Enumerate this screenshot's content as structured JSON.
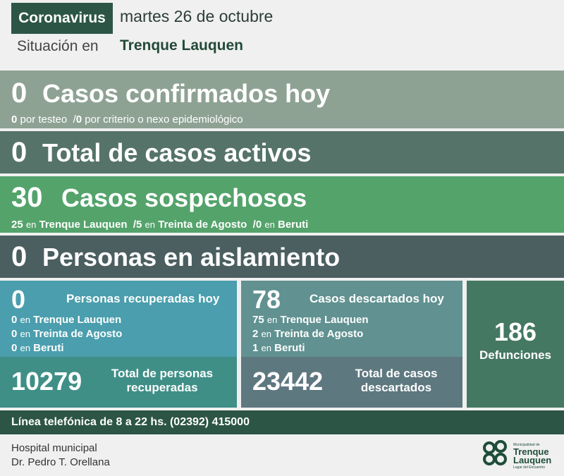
{
  "header": {
    "tag": "Coronavirus",
    "date": "martes 26 de octubre",
    "situacion": "Situación en",
    "place": "Trenque Lauquen"
  },
  "confirmados": {
    "value": "0",
    "label": "Casos confirmados hoy",
    "testeo_value": "0",
    "testeo_text": "por testeo",
    "criterio_value": "0",
    "criterio_text": "por criterio o nexo epidemiológico"
  },
  "activos": {
    "value": "0",
    "label": "Total de casos activos"
  },
  "sospechosos": {
    "value": "30",
    "label": "Casos sospechosos",
    "items": [
      {
        "value": "25",
        "en": "en",
        "place": "Trenque Lauquen"
      },
      {
        "value": "5",
        "en": "en",
        "place": "Treinta de Agosto"
      },
      {
        "value": "0",
        "en": "en",
        "place": "Beruti"
      }
    ]
  },
  "aislamiento": {
    "value": "0",
    "label": "Personas en aislamiento"
  },
  "recuperadas": {
    "value": "0",
    "label": "Personas recuperadas hoy",
    "items": [
      {
        "value": "0",
        "en": "en",
        "place": "Trenque Lauquen"
      },
      {
        "value": "0",
        "en": "en",
        "place": "Treinta de Agosto"
      },
      {
        "value": "0",
        "en": "en",
        "place": "Beruti"
      }
    ],
    "total_value": "10279",
    "total_label_1": "Total de personas",
    "total_label_2": "recuperadas"
  },
  "descartados": {
    "value": "78",
    "label": "Casos descartados hoy",
    "items": [
      {
        "value": "75",
        "en": "en",
        "place": "Trenque Lauquen"
      },
      {
        "value": "2",
        "en": "en",
        "place": "Treinta de Agosto"
      },
      {
        "value": "1",
        "en": "en",
        "place": "Beruti"
      }
    ],
    "total_value": "23442",
    "total_label_1": "Total de casos",
    "total_label_2": "descartados"
  },
  "defunciones": {
    "value": "186",
    "label": "Defunciones"
  },
  "phone": "Línea telefónica de 8 a 22 hs. (02392) 415000",
  "footer": {
    "hospital_1": "Hospital municipal",
    "hospital_2": "Dr. Pedro T. Orellana",
    "logo_top": "Municipalidad de",
    "logo_name_1": "Trenque",
    "logo_name_2": "Lauquen",
    "logo_sub": "Lugar del Encuentro"
  },
  "colors": {
    "header_green": "#2c5545",
    "confirmados": "#8ea294",
    "activos": "#557369",
    "sospechosos": "#54a36b",
    "aislamiento": "#4b5e60",
    "recuperadas": "#4a9ead",
    "descartados": "#619191",
    "defunciones": "#457863"
  },
  "icons": [
    "slash-separator",
    "municipality-logo"
  ]
}
